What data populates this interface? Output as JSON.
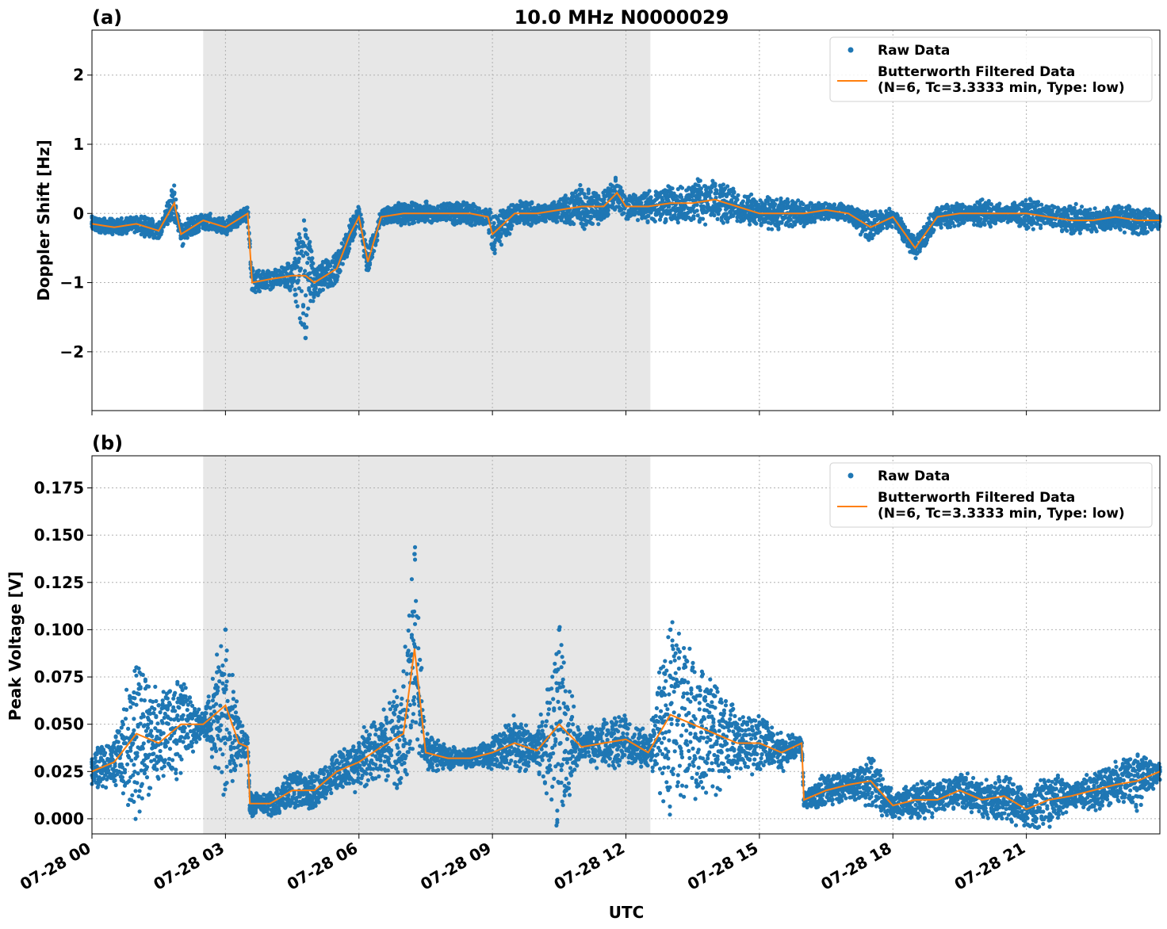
{
  "chart_data": [
    {
      "type": "line",
      "panel_label": "(a)",
      "title": "10.0 MHz N0000029",
      "xlabel": "",
      "ylabel": "Doppler Shift [Hz]",
      "xlim_hours": [
        0,
        24
      ],
      "ylim": [
        -2.85,
        2.65
      ],
      "yticks": [
        -2,
        -1,
        0,
        1,
        2
      ],
      "ytick_labels": [
        "−2",
        "−1",
        "0",
        "1",
        "2"
      ],
      "grid": true,
      "legend_position": "top-right",
      "shaded_region_hours": [
        2.5,
        12.55
      ],
      "colors": {
        "raw": "#1f77b4",
        "filtered": "#ff7f0e",
        "shade": "#e7e7e7"
      },
      "series": [
        {
          "name": "Raw Data",
          "style": "markers",
          "x_hours": [
            0,
            0.5,
            1,
            1.5,
            1.85,
            2,
            2.5,
            3,
            3.5,
            3.6,
            4,
            4.5,
            4.8,
            5,
            5.5,
            5.8,
            6,
            6.2,
            6.5,
            7,
            7.3,
            7.5,
            8,
            8.5,
            8.9,
            9,
            9.5,
            10,
            10.5,
            11,
            11.5,
            11.8,
            12,
            12.5,
            13,
            13.5,
            14,
            14.5,
            15,
            15.5,
            16,
            16.5,
            17,
            17.5,
            18,
            18.5,
            19,
            19.5,
            20,
            20.5,
            21,
            21.5,
            22,
            22.5,
            23,
            23.5,
            24
          ],
          "values": [
            -0.15,
            -0.2,
            -0.15,
            -0.3,
            0.3,
            -0.35,
            -0.1,
            -0.2,
            0.0,
            -1.1,
            -0.9,
            -1.0,
            -1.8,
            -1.1,
            -0.9,
            -0.4,
            -0.1,
            -0.8,
            -0.05,
            -0.05,
            -0.05,
            0.05,
            -0.05,
            -0.05,
            -0.05,
            -0.5,
            -0.05,
            -0.05,
            0.1,
            0.3,
            0.2,
            0.4,
            0.15,
            0.2,
            0.3,
            0.35,
            0.4,
            0.2,
            0.1,
            0.1,
            0.05,
            0.05,
            0.0,
            -0.3,
            -0.05,
            -0.55,
            -0.1,
            -0.05,
            0.1,
            0.0,
            -0.1,
            -0.1,
            -0.2,
            -0.15,
            -0.1,
            -0.2,
            -0.1
          ]
        },
        {
          "name": "Butterworth Filtered Data\n(N=6, Tc=3.3333 min, Type: low)",
          "style": "line",
          "x_hours": [
            0,
            0.5,
            1,
            1.5,
            1.85,
            2,
            2.5,
            3,
            3.5,
            3.6,
            4,
            4.5,
            4.8,
            5,
            5.5,
            5.8,
            6,
            6.2,
            6.5,
            7,
            7.3,
            7.5,
            8,
            8.5,
            8.9,
            9,
            9.5,
            10,
            10.5,
            11,
            11.5,
            11.8,
            12,
            12.5,
            13,
            13.5,
            14,
            14.5,
            15,
            15.5,
            16,
            16.5,
            17,
            17.5,
            18,
            18.5,
            19,
            19.5,
            20,
            20.5,
            21,
            21.5,
            22,
            22.5,
            23,
            23.5,
            24
          ],
          "values": [
            -0.15,
            -0.2,
            -0.15,
            -0.25,
            0.15,
            -0.3,
            -0.1,
            -0.2,
            0.0,
            -1.0,
            -0.95,
            -0.9,
            -0.9,
            -1.0,
            -0.8,
            -0.3,
            -0.05,
            -0.7,
            -0.05,
            0.0,
            0.0,
            0.0,
            0.0,
            0.0,
            -0.05,
            -0.3,
            0.0,
            0.0,
            0.05,
            0.1,
            0.1,
            0.3,
            0.1,
            0.1,
            0.15,
            0.15,
            0.2,
            0.1,
            0.0,
            0.0,
            0.0,
            0.05,
            0.0,
            -0.2,
            -0.05,
            -0.5,
            -0.05,
            0.0,
            0.0,
            0.0,
            0.0,
            -0.05,
            -0.1,
            -0.1,
            -0.05,
            -0.1,
            -0.1
          ]
        }
      ]
    },
    {
      "type": "line",
      "panel_label": "(b)",
      "title": "",
      "xlabel": "UTC",
      "ylabel": "Peak Voltage [V]",
      "xlim_hours": [
        0,
        24
      ],
      "ylim": [
        -0.008,
        0.192
      ],
      "yticks": [
        0.0,
        0.025,
        0.05,
        0.075,
        0.1,
        0.125,
        0.15,
        0.175
      ],
      "ytick_labels": [
        "0.000",
        "0.025",
        "0.050",
        "0.075",
        "0.100",
        "0.125",
        "0.150",
        "0.175"
      ],
      "xticks_hours": [
        0,
        3,
        6,
        9,
        12,
        15,
        18,
        21
      ],
      "xtick_labels": [
        "07-28 00",
        "07-28 03",
        "07-28 06",
        "07-28 09",
        "07-28 12",
        "07-28 15",
        "07-28 18",
        "07-28 21"
      ],
      "grid": true,
      "legend_position": "top-right",
      "shaded_region_hours": [
        2.5,
        12.55
      ],
      "colors": {
        "raw": "#1f77b4",
        "filtered": "#ff7f0e",
        "shade": "#e7e7e7"
      },
      "series": [
        {
          "name": "Raw Data",
          "style": "markers",
          "x_hours": [
            0,
            0.5,
            1,
            1.5,
            2,
            2.5,
            3,
            3.3,
            3.5,
            3.55,
            4,
            4.5,
            5,
            5.5,
            6,
            6.5,
            7,
            7.25,
            7.5,
            8,
            8.5,
            9,
            9.5,
            10,
            10.5,
            11,
            11.5,
            12,
            12.5,
            13,
            13.5,
            14,
            14.5,
            15,
            15.5,
            15.95,
            16,
            16.5,
            17,
            17.5,
            18,
            18.5,
            19,
            19.5,
            20,
            20.5,
            21,
            21.5,
            22,
            22.5,
            23,
            23.5,
            24
          ],
          "values": [
            0.03,
            0.04,
            0.08,
            0.06,
            0.07,
            0.05,
            0.1,
            0.05,
            0.04,
            0.005,
            0.01,
            0.02,
            0.02,
            0.03,
            0.04,
            0.05,
            0.07,
            0.14,
            0.04,
            0.035,
            0.03,
            0.04,
            0.05,
            0.04,
            0.1,
            0.04,
            0.05,
            0.05,
            0.04,
            0.1,
            0.08,
            0.07,
            0.05,
            0.05,
            0.04,
            0.04,
            0.01,
            0.02,
            0.02,
            0.03,
            0.01,
            0.015,
            0.015,
            0.02,
            0.015,
            0.02,
            0.01,
            0.02,
            0.015,
            0.02,
            0.025,
            0.03,
            0.025
          ]
        },
        {
          "name": "Butterworth Filtered Data\n(N=6, Tc=3.3333 min, Type: low)",
          "style": "line",
          "x_hours": [
            0,
            0.5,
            1,
            1.5,
            2,
            2.5,
            3,
            3.3,
            3.5,
            3.55,
            4,
            4.5,
            5,
            5.5,
            6,
            6.5,
            7,
            7.25,
            7.5,
            8,
            8.5,
            9,
            9.5,
            10,
            10.5,
            11,
            11.5,
            12,
            12.5,
            13,
            13.5,
            14,
            14.5,
            15,
            15.5,
            15.95,
            16,
            16.5,
            17,
            17.5,
            18,
            18.5,
            19,
            19.5,
            20,
            20.5,
            21,
            21.5,
            22,
            22.5,
            23,
            23.5,
            24
          ],
          "values": [
            0.025,
            0.03,
            0.045,
            0.04,
            0.05,
            0.05,
            0.06,
            0.04,
            0.038,
            0.008,
            0.008,
            0.015,
            0.015,
            0.025,
            0.03,
            0.038,
            0.045,
            0.09,
            0.035,
            0.032,
            0.032,
            0.035,
            0.04,
            0.036,
            0.05,
            0.038,
            0.04,
            0.042,
            0.035,
            0.055,
            0.05,
            0.045,
            0.04,
            0.04,
            0.035,
            0.04,
            0.01,
            0.015,
            0.018,
            0.02,
            0.007,
            0.01,
            0.01,
            0.015,
            0.01,
            0.012,
            0.005,
            0.01,
            0.012,
            0.015,
            0.018,
            0.02,
            0.025
          ]
        }
      ]
    }
  ]
}
